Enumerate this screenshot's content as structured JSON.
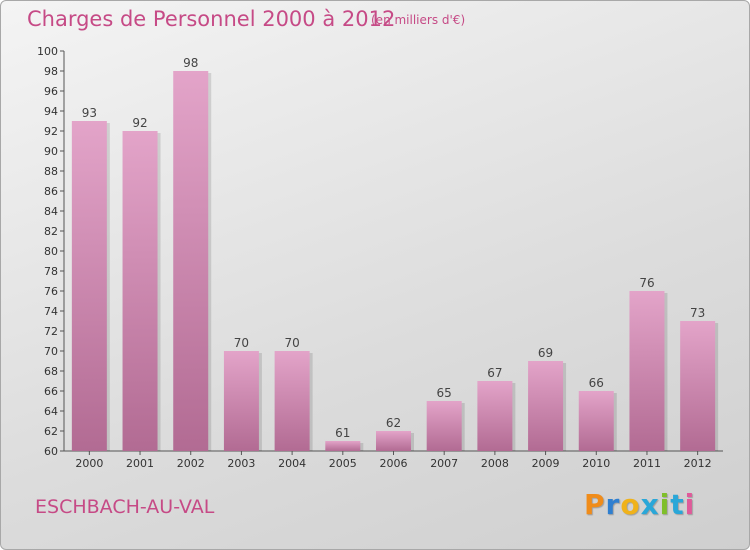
{
  "title": "Charges de Personnel 2000 à 2012",
  "subtitle": "(en milliers d'€)",
  "commune": "ESCHBACH-AU-VAL",
  "logo": {
    "letters": [
      "P",
      "r",
      "o",
      "x",
      "i",
      "t",
      "i"
    ],
    "colors": [
      "#f08c1a",
      "#2f7fd0",
      "#f0b21a",
      "#2aa7d8",
      "#7fbf2a",
      "#2aa7d8",
      "#e05a9a"
    ]
  },
  "colors": {
    "bar_light": "#e3a4c9",
    "bar_dark": "#b26b93",
    "title": "#c64a86"
  },
  "chart_data": {
    "type": "bar",
    "categories": [
      "2000",
      "2001",
      "2002",
      "2003",
      "2004",
      "2005",
      "2006",
      "2007",
      "2008",
      "2009",
      "2010",
      "2011",
      "2012"
    ],
    "values": [
      93,
      92,
      98,
      70,
      70,
      61,
      62,
      65,
      67,
      69,
      66,
      76,
      73
    ],
    "ylim": [
      60,
      100
    ],
    "yticks": [
      60,
      62,
      64,
      66,
      68,
      70,
      72,
      74,
      76,
      78,
      80,
      82,
      84,
      86,
      88,
      90,
      92,
      94,
      96,
      98,
      100
    ],
    "grid": false,
    "legend": "none"
  }
}
